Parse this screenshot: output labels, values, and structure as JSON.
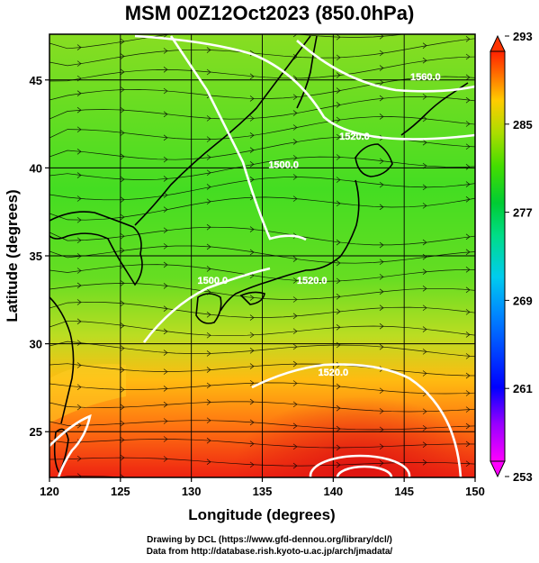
{
  "title": "MSM 00Z12Oct2023 (850.0hPa)",
  "xaxis": {
    "label": "Longitude (degrees)",
    "ticks": [
      "120",
      "125",
      "130",
      "135",
      "140",
      "145",
      "150"
    ],
    "tick_values": [
      120,
      125,
      130,
      135,
      140,
      145,
      150
    ],
    "range": [
      120,
      150
    ]
  },
  "yaxis": {
    "label": "Latitude  (degrees)",
    "ticks": [
      "25",
      "30",
      "35",
      "40",
      "45"
    ],
    "tick_values": [
      25,
      30,
      35,
      40,
      45
    ],
    "range": [
      22.4,
      47.6
    ]
  },
  "colorbar": {
    "ticks": [
      "293",
      "285",
      "277",
      "269",
      "261",
      "253"
    ],
    "tick_values": [
      293,
      285,
      277,
      269,
      261,
      253
    ],
    "range": [
      253,
      293
    ],
    "colors": [
      "#ff00ff",
      "#8800ff",
      "#0000ff",
      "#0088ff",
      "#00ccff",
      "#00ddaa",
      "#00cc44",
      "#44dd00",
      "#aadd00",
      "#ffdd00",
      "#ff8800",
      "#ff2200"
    ]
  },
  "contours": {
    "labels": [
      "1560.0",
      "1520.0",
      "1500.0",
      "1520.0",
      "1500.0",
      "1520.0"
    ],
    "label_lon": [
      146.5,
      141.5,
      136.5,
      138.5,
      131.5,
      140.0
    ],
    "label_lat": [
      45.0,
      41.6,
      40.0,
      33.4,
      33.4,
      28.2
    ]
  },
  "credits": {
    "line1": "Drawing by DCL (https://www.gfd-dennou.org/library/dcl/)",
    "line2": "Data from http://database.rish.kyoto-u.ac.jp/arch/jmadata/"
  }
}
